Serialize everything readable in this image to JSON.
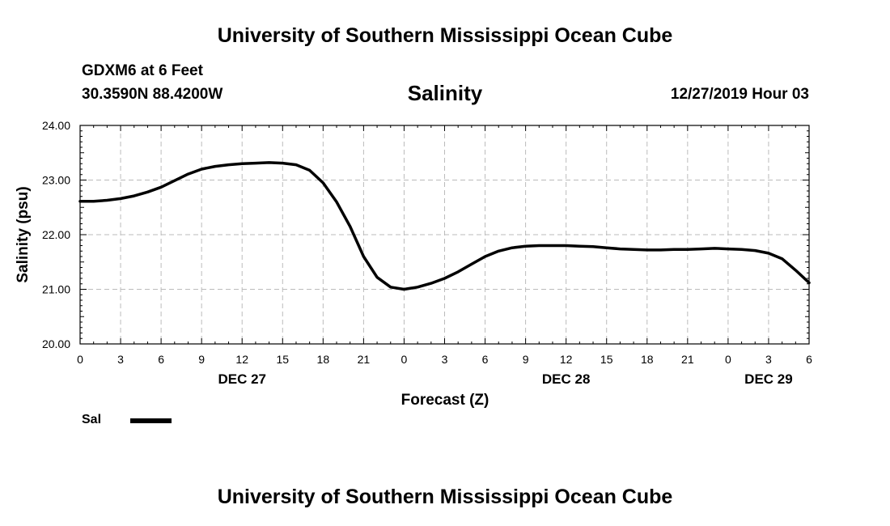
{
  "header": {
    "title_top": "University of Southern Mississippi Ocean Cube",
    "station": "GDXM6 at 6 Feet",
    "coords": "30.3590N 88.4200W",
    "datetime": "12/27/2019 Hour 03",
    "title_bottom": "University of Southern Mississippi Ocean Cube"
  },
  "legend": {
    "label": "Sal",
    "color": "#000000"
  },
  "chart_data": {
    "type": "line",
    "title": "Salinity",
    "xlabel": "Forecast (Z)",
    "ylabel": "Salinity (psu)",
    "ylim": [
      20.0,
      24.0
    ],
    "xlim": [
      0,
      54
    ],
    "y_ticks": [
      "20.00",
      "21.00",
      "22.00",
      "23.00",
      "24.00"
    ],
    "x_ticks": [
      "0",
      "3",
      "6",
      "9",
      "12",
      "15",
      "18",
      "21",
      "0",
      "3",
      "6",
      "9",
      "12",
      "15",
      "18",
      "21",
      "0",
      "3",
      "6"
    ],
    "date_labels": [
      {
        "label": "DEC 27",
        "hour": 12
      },
      {
        "label": "DEC 28",
        "hour": 36
      },
      {
        "label": "DEC 29",
        "hour": 51
      }
    ],
    "grid": true,
    "series": [
      {
        "name": "Sal",
        "x": [
          0,
          1,
          2,
          3,
          4,
          5,
          6,
          7,
          8,
          9,
          10,
          11,
          12,
          13,
          14,
          15,
          16,
          17,
          18,
          19,
          20,
          21,
          22,
          23,
          24,
          25,
          26,
          27,
          28,
          29,
          30,
          31,
          32,
          33,
          34,
          35,
          36,
          37,
          38,
          39,
          40,
          41,
          42,
          43,
          44,
          45,
          46,
          47,
          48,
          49,
          50,
          51,
          52,
          53,
          54
        ],
        "values": [
          22.61,
          22.61,
          22.63,
          22.66,
          22.71,
          22.78,
          22.87,
          22.99,
          23.11,
          23.2,
          23.25,
          23.28,
          23.3,
          23.31,
          23.32,
          23.31,
          23.28,
          23.18,
          22.95,
          22.6,
          22.15,
          21.6,
          21.22,
          21.04,
          21.0,
          21.04,
          21.11,
          21.2,
          21.32,
          21.46,
          21.6,
          21.7,
          21.76,
          21.79,
          21.8,
          21.8,
          21.8,
          21.79,
          21.78,
          21.76,
          21.74,
          21.73,
          21.72,
          21.72,
          21.73,
          21.73,
          21.74,
          21.75,
          21.74,
          21.73,
          21.71,
          21.66,
          21.56,
          21.35,
          21.12
        ]
      }
    ]
  }
}
